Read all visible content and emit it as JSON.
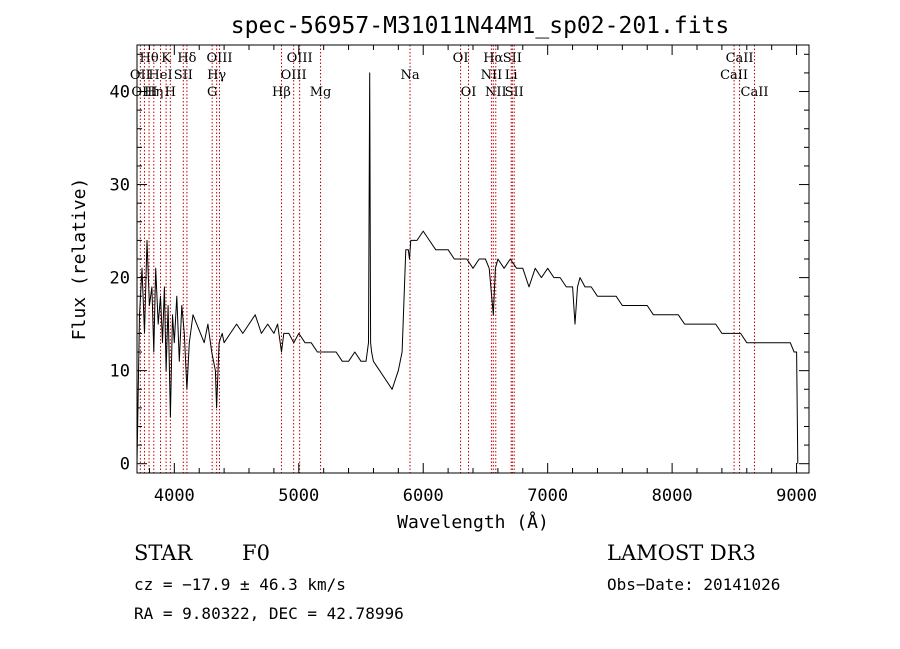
{
  "chart_data": {
    "type": "line",
    "title": "spec-56957-M31011N44M1_sp02-201.fits",
    "xlabel": "Wavelength (Å)",
    "ylabel": "Flux (relative)",
    "xlim": [
      3700,
      9100
    ],
    "ylim": [
      -1,
      45
    ],
    "xticks": [
      4000,
      5000,
      6000,
      7000,
      8000,
      9000
    ],
    "yticks": [
      0,
      10,
      20,
      30,
      40
    ],
    "series": [
      {
        "name": "flux",
        "x": [
          3700,
          3720,
          3740,
          3760,
          3780,
          3800,
          3820,
          3835,
          3850,
          3870,
          3889,
          3905,
          3920,
          3934,
          3950,
          3968,
          3985,
          4000,
          4020,
          4040,
          4060,
          4080,
          4101,
          4120,
          4150,
          4180,
          4210,
          4240,
          4270,
          4300,
          4330,
          4340,
          4360,
          4385,
          4400,
          4450,
          4500,
          4550,
          4600,
          4650,
          4700,
          4750,
          4800,
          4830,
          4861,
          4880,
          4920,
          4960,
          5000,
          5050,
          5100,
          5150,
          5200,
          5250,
          5300,
          5350,
          5400,
          5450,
          5500,
          5540,
          5560,
          5570,
          5577,
          5585,
          5600,
          5650,
          5700,
          5750,
          5800,
          5830,
          5860,
          5880,
          5890,
          5900,
          5920,
          5950,
          6000,
          6050,
          6100,
          6150,
          6200,
          6250,
          6300,
          6350,
          6400,
          6450,
          6500,
          6530,
          6563,
          6580,
          6600,
          6650,
          6700,
          6750,
          6800,
          6850,
          6900,
          6950,
          7000,
          7050,
          7100,
          7150,
          7200,
          7220,
          7240,
          7260,
          7300,
          7350,
          7400,
          7450,
          7500,
          7550,
          7600,
          7650,
          7700,
          7750,
          7800,
          7850,
          7900,
          7950,
          8000,
          8050,
          8100,
          8150,
          8200,
          8250,
          8300,
          8350,
          8400,
          8450,
          8500,
          8550,
          8600,
          8650,
          8700,
          8750,
          8800,
          8850,
          8900,
          8950,
          8980,
          9000,
          9010
        ],
        "values": [
          0,
          16,
          21,
          14,
          24,
          17,
          19,
          12,
          21,
          15,
          18,
          13,
          19,
          10,
          17,
          5,
          16,
          13,
          18,
          11,
          17,
          14,
          8,
          13,
          16,
          15,
          14,
          13,
          15,
          12,
          10,
          6,
          13,
          14,
          13,
          14,
          15,
          14,
          15,
          16,
          14,
          15,
          14,
          15,
          12,
          14,
          14,
          13,
          14,
          13,
          13,
          12,
          12,
          12,
          12,
          11,
          11,
          12,
          11,
          11,
          13,
          42,
          13,
          12,
          11,
          10,
          9,
          8,
          10,
          12,
          23,
          23,
          22,
          24,
          24,
          24,
          25,
          24,
          23,
          23,
          23,
          22,
          22,
          22,
          21,
          22,
          22,
          21,
          16,
          21,
          22,
          21,
          22,
          21,
          21,
          19,
          21,
          20,
          21,
          20,
          20,
          19,
          19,
          15,
          19,
          20,
          19,
          19,
          18,
          18,
          18,
          18,
          17,
          17,
          17,
          17,
          17,
          16,
          16,
          16,
          16,
          16,
          15,
          15,
          15,
          15,
          15,
          15,
          14,
          14,
          14,
          14,
          13,
          13,
          13,
          13,
          13,
          13,
          13,
          13,
          12,
          12,
          0
        ]
      }
    ],
    "lines": [
      {
        "name": "Hθ",
        "wave": 3797,
        "row": 1
      },
      {
        "name": "OII",
        "wave": 3727,
        "row": 2
      },
      {
        "name": "OIII",
        "wave": 3760,
        "row": 3
      },
      {
        "name": "Hη",
        "wave": 3835,
        "row": 3
      },
      {
        "name": "HeI",
        "wave": 3889,
        "row": 2
      },
      {
        "name": "K",
        "wave": 3934,
        "row": 1
      },
      {
        "name": "H",
        "wave": 3968,
        "row": 3
      },
      {
        "name": "SII",
        "wave": 4072,
        "row": 2
      },
      {
        "name": "Hδ",
        "wave": 4101,
        "row": 1
      },
      {
        "name": "G",
        "wave": 4304,
        "row": 3
      },
      {
        "name": "OIII",
        "wave": 4363,
        "row": 1
      },
      {
        "name": "Hγ",
        "wave": 4340,
        "row": 2
      },
      {
        "name": "Hβ",
        "wave": 4861,
        "row": 3
      },
      {
        "name": "OIII",
        "wave": 4959,
        "row": 2
      },
      {
        "name": "OIII",
        "wave": 5007,
        "row": 1
      },
      {
        "name": "Mg",
        "wave": 5175,
        "row": 3
      },
      {
        "name": "Na",
        "wave": 5894,
        "row": 2
      },
      {
        "name": "OI",
        "wave": 6300,
        "row": 1
      },
      {
        "name": "OI",
        "wave": 6364,
        "row": 3
      },
      {
        "name": "NII",
        "wave": 6548,
        "row": 2
      },
      {
        "name": "Hα",
        "wave": 6563,
        "row": 1
      },
      {
        "name": "NII",
        "wave": 6583,
        "row": 3
      },
      {
        "name": "Li",
        "wave": 6707,
        "row": 2
      },
      {
        "name": "SII",
        "wave": 6716,
        "row": 1
      },
      {
        "name": "SII",
        "wave": 6731,
        "row": 3
      },
      {
        "name": "CaII",
        "wave": 8498,
        "row": 2
      },
      {
        "name": "CaII",
        "wave": 8542,
        "row": 1
      },
      {
        "name": "CaII",
        "wave": 8662,
        "row": 3
      }
    ]
  },
  "info": {
    "object_class": "STAR",
    "subclass": "F0",
    "redshift": "cz = −17.9 ± 46.3 km/s",
    "coords": "RA =   9.80322, DEC =  42.78996",
    "survey": "LAMOST DR3",
    "obs_date": "Obs−Date: 20141026"
  },
  "colors": {
    "spectrum": "#000000",
    "line_marker": "#c00000",
    "axes": "#000000"
  }
}
